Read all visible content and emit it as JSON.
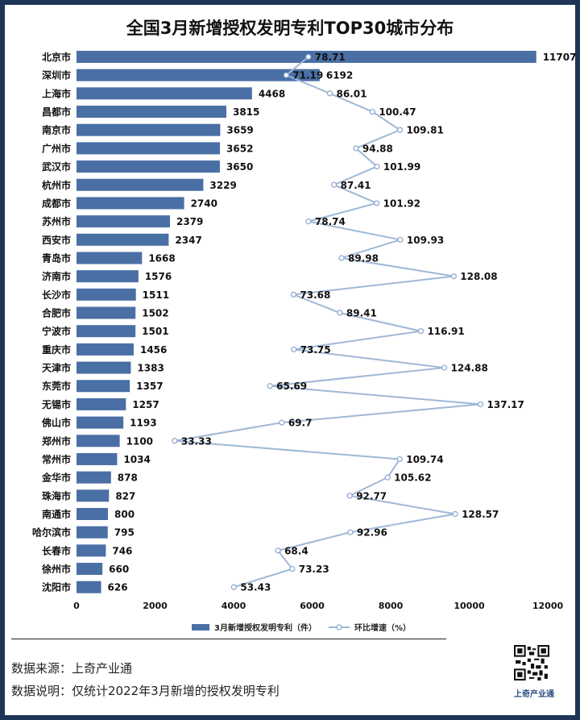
{
  "chart_data": {
    "type": "bar",
    "title": "全国3月新增授权发明专利TOP30城市分布",
    "categories": [
      "北京市",
      "深圳市",
      "上海市",
      "昌都市",
      "南京市",
      "广州市",
      "武汉市",
      "杭州市",
      "成都市",
      "苏州市",
      "西安市",
      "青岛市",
      "济南市",
      "长沙市",
      "合肥市",
      "宁波市",
      "重庆市",
      "天津市",
      "东莞市",
      "无锡市",
      "佛山市",
      "郑州市",
      "常州市",
      "金华市",
      "珠海市",
      "南通市",
      "哈尔滨市",
      "长春市",
      "徐州市",
      "沈阳市"
    ],
    "series": [
      {
        "name": "3月新增授权发明专利（件）",
        "type": "bar",
        "values": [
          11707,
          6192,
          4468,
          3815,
          3659,
          3652,
          3650,
          3229,
          2740,
          2379,
          2347,
          1668,
          1576,
          1511,
          1502,
          1501,
          1456,
          1383,
          1357,
          1257,
          1193,
          1100,
          1034,
          878,
          827,
          800,
          795,
          746,
          660,
          626
        ],
        "color": "#4a6fa5"
      },
      {
        "name": "环比增速（%）",
        "type": "line",
        "values": [
          78.71,
          71.19,
          86.01,
          100.47,
          109.81,
          94.88,
          101.99,
          87.41,
          101.92,
          78.74,
          109.93,
          89.98,
          128.08,
          73.68,
          89.41,
          116.91,
          73.75,
          124.88,
          65.69,
          137.17,
          69.7,
          33.33,
          109.74,
          105.62,
          92.77,
          128.57,
          92.96,
          68.4,
          73.23,
          53.43
        ],
        "color": "#9fb8d6"
      }
    ],
    "x_ticks": [
      "0",
      "2000",
      "4000",
      "6000",
      "8000",
      "10000",
      "12000"
    ],
    "xlim": [
      0,
      12000
    ],
    "line_range": [
      0,
      160
    ],
    "legend": "bottom",
    "grid": false
  },
  "footer": {
    "source": "数据来源：上奇产业通",
    "note": "数据说明：仅统计2022年3月新增的授权发明专利"
  },
  "brand": "上奇产业通",
  "colors": {
    "frame": "#1f3556",
    "bar": "#4a6fa5",
    "line": "#9fb8d6"
  }
}
